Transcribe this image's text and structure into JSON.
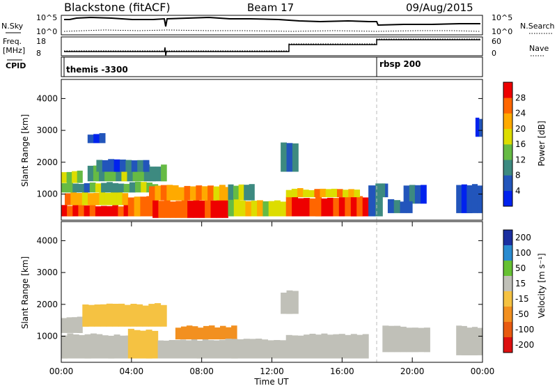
{
  "header": {
    "title": "Blackstone (fitACF)",
    "beam": "Beam 17",
    "date": "09/Aug/2015"
  },
  "status_panel": {
    "nsky_label": "N.Sky",
    "nsky_ticks": [
      "10^5",
      "10^0"
    ],
    "nsearch_label": "N.Search",
    "nsearch_ticks": [
      "10^5",
      "10^0"
    ],
    "freq_label_1": "Freq.",
    "freq_label_2": "[MHz]",
    "freq_ticks": [
      "18",
      "8"
    ],
    "nave_label": "Nave",
    "nave_ticks": [
      "60",
      "0"
    ],
    "cpid_label": "CPID",
    "cpid_segments": [
      {
        "name": "themis -3300",
        "start_hour": 0
      },
      {
        "name": "rbsp 200",
        "start_hour": 18
      }
    ]
  },
  "colors": {
    "power_scale": [
      "#0022ee",
      "#2255bb",
      "#3d8a80",
      "#66bb44",
      "#dddd00",
      "#ffaa00",
      "#ff6600",
      "#ee0000"
    ],
    "velocity_scale": [
      "#1b2fa0",
      "#2a8bd0",
      "#66c133",
      "#c0c0b8",
      "#f5c242",
      "#f29020",
      "#e85a10",
      "#dd1010"
    ]
  },
  "chart_data": [
    {
      "type": "heatmap",
      "name": "power",
      "ylabel": "Slant Range [km]",
      "yticks": [
        1000,
        2000,
        3000,
        4000
      ],
      "ylim": [
        180,
        4600
      ],
      "xlim": [
        0,
        24
      ],
      "colorbar": {
        "label": "Power [dB]",
        "ticks": [
          4,
          8,
          12,
          16,
          20,
          24,
          28
        ],
        "range": [
          0,
          32
        ]
      },
      "bands": [
        {
          "t0": 0.0,
          "t1": 4.2,
          "r0": 300,
          "r1": 650,
          "v": 29
        },
        {
          "t0": 0.2,
          "t1": 3.8,
          "r0": 650,
          "r1": 1050,
          "v": 21
        },
        {
          "t0": 0.0,
          "t1": 5.5,
          "r0": 1050,
          "r1": 1350,
          "v": 12
        },
        {
          "t0": 0.0,
          "t1": 1.2,
          "r0": 1350,
          "r1": 1700,
          "v": 18
        },
        {
          "t0": 1.5,
          "t1": 6.0,
          "r0": 1400,
          "r1": 1900,
          "v": 13
        },
        {
          "t0": 2.0,
          "t1": 5.0,
          "r0": 1700,
          "r1": 2100,
          "v": 8
        },
        {
          "t0": 3.8,
          "t1": 5.2,
          "r0": 300,
          "r1": 900,
          "v": 26
        },
        {
          "t0": 5.2,
          "t1": 9.5,
          "r0": 250,
          "r1": 800,
          "v": 30
        },
        {
          "t0": 5.0,
          "t1": 10.0,
          "r0": 800,
          "r1": 1250,
          "v": 22
        },
        {
          "t0": 9.5,
          "t1": 11.0,
          "r0": 800,
          "r1": 1300,
          "v": 14
        },
        {
          "t0": 9.5,
          "t1": 12.8,
          "r0": 300,
          "r1": 800,
          "v": 18
        },
        {
          "t0": 12.8,
          "t1": 17.5,
          "r0": 300,
          "r1": 900,
          "v": 29
        },
        {
          "t0": 12.8,
          "t1": 17.0,
          "r0": 900,
          "r1": 1150,
          "v": 21
        },
        {
          "t0": 12.5,
          "t1": 13.5,
          "r0": 1700,
          "r1": 2600,
          "v": 7
        },
        {
          "t0": 17.5,
          "t1": 18.3,
          "r0": 300,
          "r1": 1300,
          "v": 10
        },
        {
          "t0": 18.3,
          "t1": 18.6,
          "r0": 900,
          "r1": 1300,
          "v": 8
        },
        {
          "t0": 19.5,
          "t1": 20.8,
          "r0": 700,
          "r1": 1300,
          "v": 7
        },
        {
          "t0": 18.6,
          "t1": 20.0,
          "r0": 400,
          "r1": 800,
          "v": 6
        },
        {
          "t0": 22.5,
          "t1": 24.0,
          "r0": 400,
          "r1": 1300,
          "v": 6
        },
        {
          "t0": 23.6,
          "t1": 24.0,
          "r0": 2800,
          "r1": 3400,
          "v": 6
        },
        {
          "t0": 1.5,
          "t1": 2.5,
          "r0": 2600,
          "r1": 2900,
          "v": 6
        }
      ]
    },
    {
      "type": "heatmap",
      "name": "velocity",
      "ylabel": "Slant Range [km]",
      "yticks": [
        1000,
        2000,
        3000,
        4000
      ],
      "ylim": [
        180,
        4600
      ],
      "xlim": [
        0,
        24
      ],
      "xticks": [
        "00:00",
        "04:00",
        "08:00",
        "12:00",
        "16:00",
        "20:00",
        "00:00"
      ],
      "xlabel": "Time UT",
      "colorbar": {
        "label": "Velocity [m s⁻¹]",
        "ticks": [
          "200",
          "100",
          "50",
          "15",
          "-15",
          "-50",
          "-100",
          "-200"
        ]
      },
      "bands": [
        {
          "t0": 0.0,
          "t1": 4.0,
          "r0": 300,
          "r1": 1050,
          "v": 0
        },
        {
          "t0": 0.0,
          "t1": 1.2,
          "r0": 1100,
          "r1": 1600,
          "v": 0
        },
        {
          "t0": 1.2,
          "t1": 6.0,
          "r0": 1300,
          "r1": 2000,
          "v": -40
        },
        {
          "t0": 3.8,
          "t1": 5.5,
          "r0": 300,
          "r1": 1200,
          "v": -45
        },
        {
          "t0": 5.5,
          "t1": 9.0,
          "r0": 300,
          "r1": 900,
          "v": 0
        },
        {
          "t0": 6.5,
          "t1": 10.0,
          "r0": 900,
          "r1": 1300,
          "v": -70
        },
        {
          "t0": 9.0,
          "t1": 12.8,
          "r0": 300,
          "r1": 900,
          "v": 0
        },
        {
          "t0": 12.8,
          "t1": 17.5,
          "r0": 300,
          "r1": 1050,
          "v": 0
        },
        {
          "t0": 12.5,
          "t1": 13.5,
          "r0": 1700,
          "r1": 2400,
          "v": 0
        },
        {
          "t0": 18.3,
          "t1": 21.0,
          "r0": 500,
          "r1": 1300,
          "v": 0
        },
        {
          "t0": 22.5,
          "t1": 24.0,
          "r0": 400,
          "r1": 1300,
          "v": 0
        }
      ]
    }
  ]
}
